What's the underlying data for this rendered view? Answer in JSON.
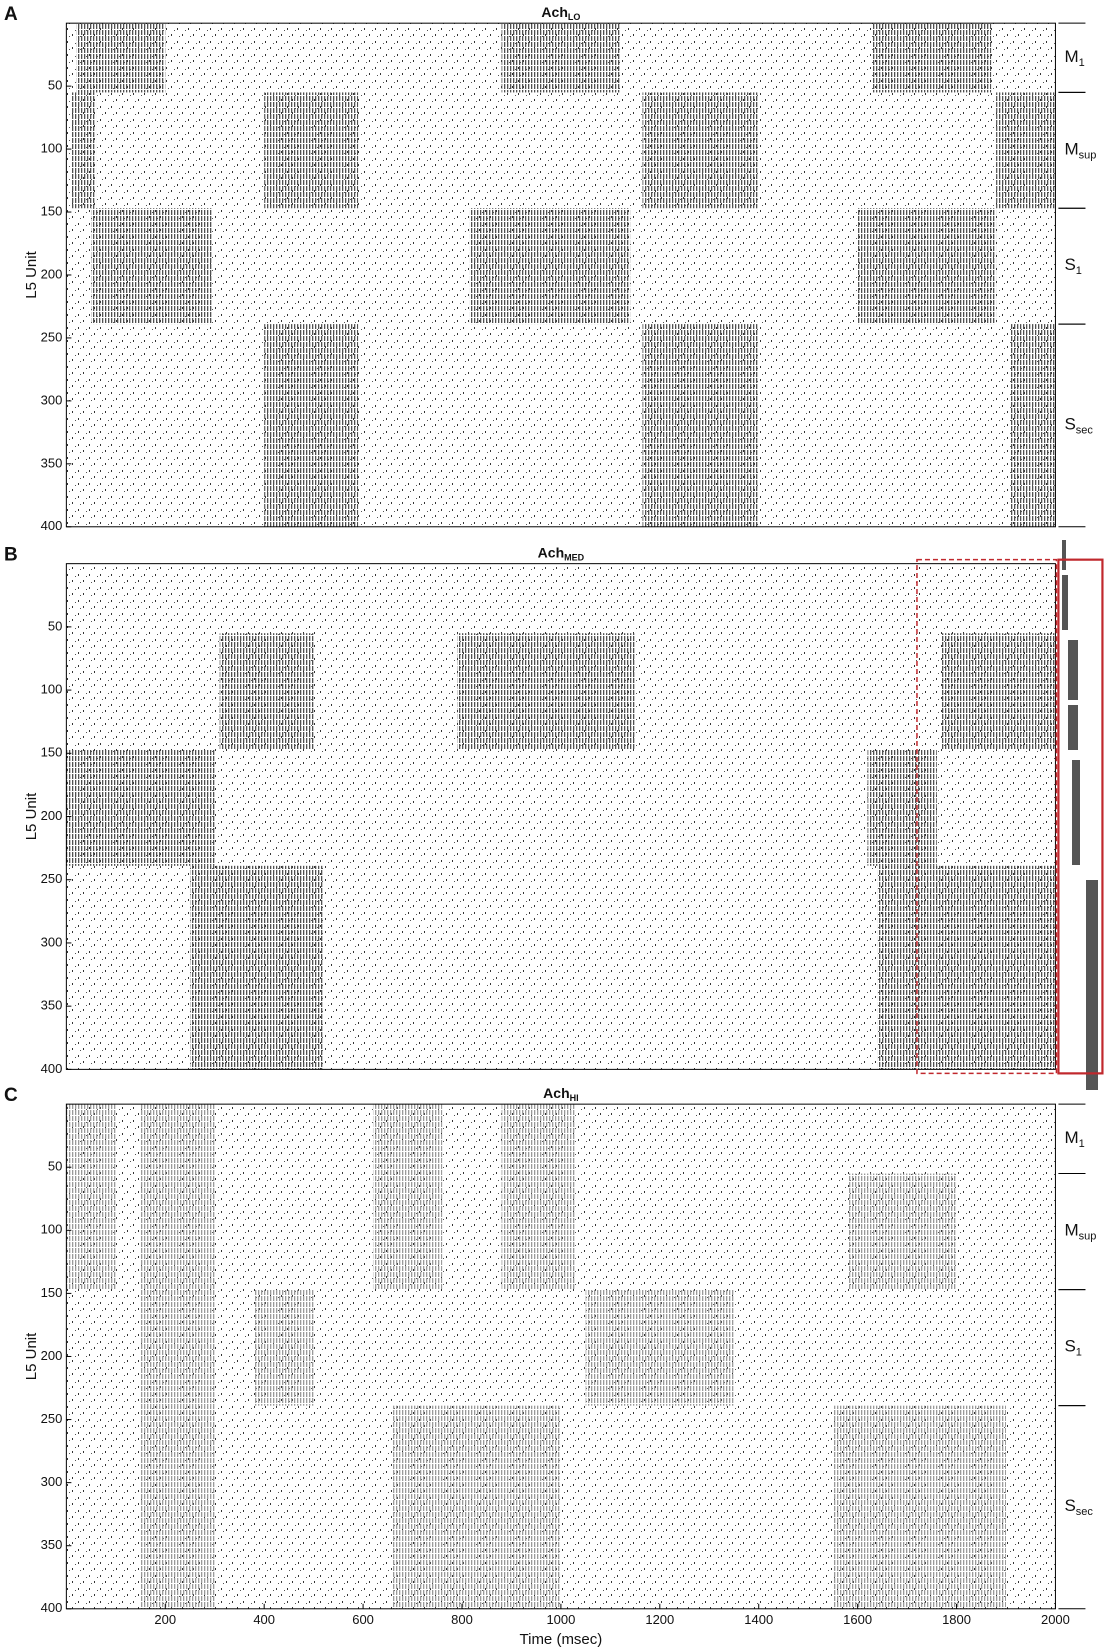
{
  "chart_data": [
    {
      "type": "raster",
      "panel": "A",
      "title": {
        "main": "Ach",
        "sub": "LO"
      },
      "ylabel": "L5 Unit",
      "xlim": [
        0,
        2000
      ],
      "ylim": [
        0,
        400
      ],
      "yticks": [
        50,
        100,
        150,
        200,
        250,
        300,
        350,
        400
      ],
      "color": "#505050",
      "groups": [
        {
          "label": {
            "main": "M",
            "sub": "1"
          },
          "units": [
            0,
            55
          ]
        },
        {
          "label": {
            "main": "M",
            "sub": "sup"
          },
          "units": [
            55,
            147
          ]
        },
        {
          "label": {
            "main": "S",
            "sub": "1"
          },
          "units": [
            147,
            239
          ]
        },
        {
          "label": {
            "main": "S",
            "sub": "sec"
          },
          "units": [
            239,
            400
          ]
        }
      ],
      "blocks": [
        {
          "units": [
            0,
            55
          ],
          "time": [
            20,
            200
          ]
        },
        {
          "units": [
            0,
            55
          ],
          "time": [
            880,
            1120
          ]
        },
        {
          "units": [
            0,
            55
          ],
          "time": [
            1630,
            1870
          ]
        },
        {
          "units": [
            55,
            147
          ],
          "time": [
            10,
            60
          ]
        },
        {
          "units": [
            55,
            147
          ],
          "time": [
            400,
            590
          ]
        },
        {
          "units": [
            55,
            147
          ],
          "time": [
            1165,
            1400
          ]
        },
        {
          "units": [
            55,
            147
          ],
          "time": [
            1880,
            2000
          ]
        },
        {
          "units": [
            147,
            239
          ],
          "time": [
            50,
            295
          ]
        },
        {
          "units": [
            147,
            239
          ],
          "time": [
            815,
            1140
          ]
        },
        {
          "units": [
            147,
            239
          ],
          "time": [
            1600,
            1880
          ]
        },
        {
          "units": [
            239,
            400
          ],
          "time": [
            400,
            590
          ]
        },
        {
          "units": [
            239,
            400
          ],
          "time": [
            1165,
            1400
          ]
        },
        {
          "units": [
            239,
            400
          ],
          "time": [
            1910,
            2000
          ]
        }
      ]
    },
    {
      "type": "raster",
      "panel": "B",
      "title": {
        "main": "Ach",
        "sub": "MED"
      },
      "ylabel": "L5 Unit",
      "xlim": [
        0,
        2000
      ],
      "ylim": [
        0,
        400
      ],
      "yticks": [
        50,
        100,
        150,
        200,
        250,
        300,
        350,
        400
      ],
      "color": "#505050",
      "highlight": {
        "xlim": [
          1720,
          2000
        ]
      },
      "blocks": [
        {
          "units": [
            55,
            147
          ],
          "time": [
            310,
            500
          ]
        },
        {
          "units": [
            55,
            147
          ],
          "time": [
            790,
            1150
          ]
        },
        {
          "units": [
            55,
            147
          ],
          "time": [
            1770,
            2000
          ]
        },
        {
          "units": [
            147,
            239
          ],
          "time": [
            0,
            300
          ]
        },
        {
          "units": [
            147,
            239
          ],
          "time": [
            1620,
            1760
          ]
        },
        {
          "units": [
            239,
            400
          ],
          "time": [
            250,
            520
          ]
        },
        {
          "units": [
            239,
            400
          ],
          "time": [
            1640,
            2000
          ]
        }
      ]
    },
    {
      "type": "raster",
      "panel": "C",
      "title": {
        "main": "Ach",
        "sub": "HI"
      },
      "ylabel": "L5 Unit",
      "xlabel": "Time (msec)",
      "xlim": [
        0,
        2000
      ],
      "ylim": [
        0,
        400
      ],
      "xticks": [
        200,
        400,
        600,
        800,
        1000,
        1200,
        1400,
        1600,
        1800,
        2000
      ],
      "yticks": [
        50,
        100,
        150,
        200,
        250,
        300,
        350,
        400
      ],
      "color": "#9a9a9a",
      "groups": [
        {
          "label": {
            "main": "M",
            "sub": "1"
          },
          "units": [
            0,
            55
          ]
        },
        {
          "label": {
            "main": "M",
            "sub": "sup"
          },
          "units": [
            55,
            147
          ]
        },
        {
          "label": {
            "main": "S",
            "sub": "1"
          },
          "units": [
            147,
            239
          ]
        },
        {
          "label": {
            "main": "S",
            "sub": "sec"
          },
          "units": [
            239,
            400
          ]
        }
      ],
      "blocks": [
        {
          "units": [
            0,
            147
          ],
          "time": [
            0,
            100
          ]
        },
        {
          "units": [
            0,
            147
          ],
          "time": [
            150,
            300
          ]
        },
        {
          "units": [
            0,
            147
          ],
          "time": [
            620,
            760
          ]
        },
        {
          "units": [
            0,
            147
          ],
          "time": [
            880,
            1030
          ]
        },
        {
          "units": [
            55,
            147
          ],
          "time": [
            1580,
            1800
          ]
        },
        {
          "units": [
            147,
            239
          ],
          "time": [
            150,
            300
          ]
        },
        {
          "units": [
            147,
            239
          ],
          "time": [
            380,
            500
          ]
        },
        {
          "units": [
            147,
            239
          ],
          "time": [
            1050,
            1350
          ]
        },
        {
          "units": [
            239,
            400
          ],
          "time": [
            150,
            300
          ]
        },
        {
          "units": [
            239,
            400
          ],
          "time": [
            660,
            1000
          ]
        },
        {
          "units": [
            239,
            400
          ],
          "time": [
            1550,
            1900
          ]
        }
      ]
    }
  ]
}
